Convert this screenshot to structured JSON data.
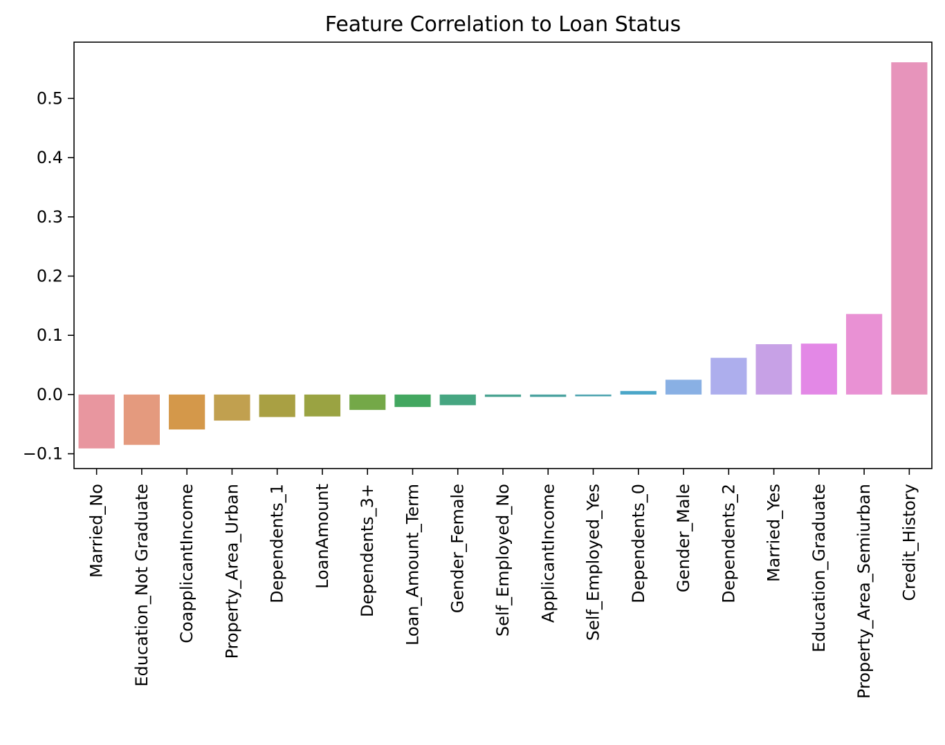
{
  "chart_data": {
    "type": "bar",
    "title": "Feature Correlation to Loan Status",
    "xlabel": "",
    "ylabel": "",
    "ylim": [
      -0.125,
      0.595
    ],
    "yticks": [
      -0.1,
      0.0,
      0.1,
      0.2,
      0.3,
      0.4,
      0.5
    ],
    "ytick_labels": [
      "−0.1",
      "0.0",
      "0.1",
      "0.2",
      "0.3",
      "0.4",
      "0.5"
    ],
    "grid": false,
    "legend": "none",
    "categories": [
      "Married_No",
      "Education_Not Graduate",
      "CoapplicantIncome",
      "Property_Area_Urban",
      "Dependents_1",
      "LoanAmount",
      "Dependents_3+",
      "Loan_Amount_Term",
      "Gender_Female",
      "Self_Employed_No",
      "ApplicantIncome",
      "Self_Employed_Yes",
      "Dependents_0",
      "Gender_Male",
      "Dependents_2",
      "Married_Yes",
      "Education_Graduate",
      "Property_Area_Semiurban",
      "Credit_History"
    ],
    "values": [
      -0.091,
      -0.085,
      -0.059,
      -0.044,
      -0.038,
      -0.037,
      -0.026,
      -0.021,
      -0.018,
      -0.004,
      -0.004,
      -0.003,
      0.006,
      0.025,
      0.062,
      0.085,
      0.086,
      0.136,
      0.561
    ],
    "colors": [
      "#e8969f",
      "#e49a7e",
      "#d4984a",
      "#c1a04f",
      "#a9a043",
      "#9aa342",
      "#74a848",
      "#43a760",
      "#46a681",
      "#49a391",
      "#4aa29f",
      "#4ba3ae",
      "#4aa6c8",
      "#89b0e4",
      "#adaeed",
      "#c7a1e6",
      "#e388e6",
      "#e991d4",
      "#e794bb"
    ]
  }
}
